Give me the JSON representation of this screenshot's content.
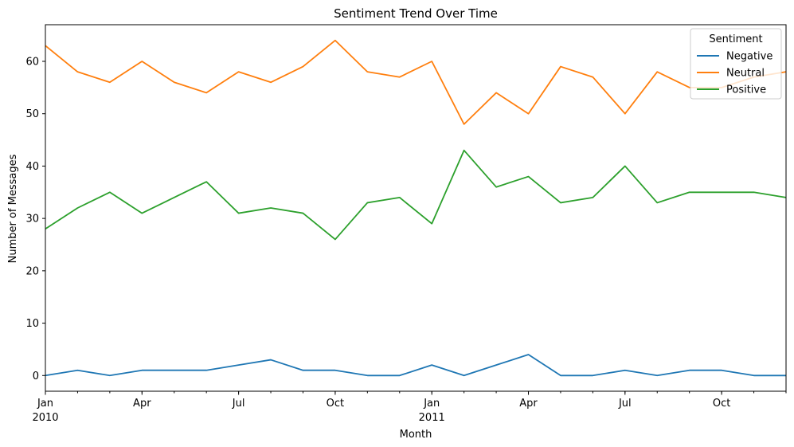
{
  "chart_data": {
    "type": "line",
    "title": "Sentiment Trend Over Time",
    "xlabel": "Month",
    "ylabel": "Number of Messages",
    "x": [
      "2010-01",
      "2010-02",
      "2010-03",
      "2010-04",
      "2010-05",
      "2010-06",
      "2010-07",
      "2010-08",
      "2010-09",
      "2010-10",
      "2010-11",
      "2010-12",
      "2011-01",
      "2011-02",
      "2011-03",
      "2011-04",
      "2011-05",
      "2011-06",
      "2011-07",
      "2011-08",
      "2011-09",
      "2011-10",
      "2011-11",
      "2011-12"
    ],
    "x_ticks_major": [
      {
        "x": "2010-01",
        "label": "Jan",
        "year": "2010"
      },
      {
        "x": "2010-04",
        "label": "Apr",
        "year": ""
      },
      {
        "x": "2010-07",
        "label": "Jul",
        "year": ""
      },
      {
        "x": "2010-10",
        "label": "Oct",
        "year": ""
      },
      {
        "x": "2011-01",
        "label": "Jan",
        "year": "2011"
      },
      {
        "x": "2011-04",
        "label": "Apr",
        "year": ""
      },
      {
        "x": "2011-07",
        "label": "Jul",
        "year": ""
      },
      {
        "x": "2011-10",
        "label": "Oct",
        "year": ""
      }
    ],
    "ylim": [
      -3,
      67
    ],
    "yticks": [
      0,
      10,
      20,
      30,
      40,
      50,
      60
    ],
    "grid": false,
    "legend": {
      "title": "Sentiment",
      "placement": "top-right"
    },
    "series": [
      {
        "name": "Negative",
        "color": "#1f77b4",
        "values": [
          0,
          1,
          0,
          1,
          1,
          1,
          2,
          3,
          1,
          1,
          0,
          0,
          2,
          0,
          2,
          4,
          0,
          0,
          1,
          0,
          1,
          1,
          0,
          0
        ]
      },
      {
        "name": "Neutral",
        "color": "#ff7f0e",
        "values": [
          63,
          58,
          56,
          60,
          56,
          54,
          58,
          56,
          59,
          64,
          58,
          57,
          60,
          48,
          54,
          50,
          59,
          57,
          50,
          58,
          55,
          55,
          57,
          58
        ]
      },
      {
        "name": "Positive",
        "color": "#2ca02c",
        "values": [
          28,
          32,
          35,
          31,
          34,
          37,
          31,
          32,
          31,
          26,
          33,
          34,
          29,
          43,
          36,
          38,
          33,
          34,
          40,
          33,
          35,
          35,
          35,
          34
        ]
      }
    ]
  }
}
